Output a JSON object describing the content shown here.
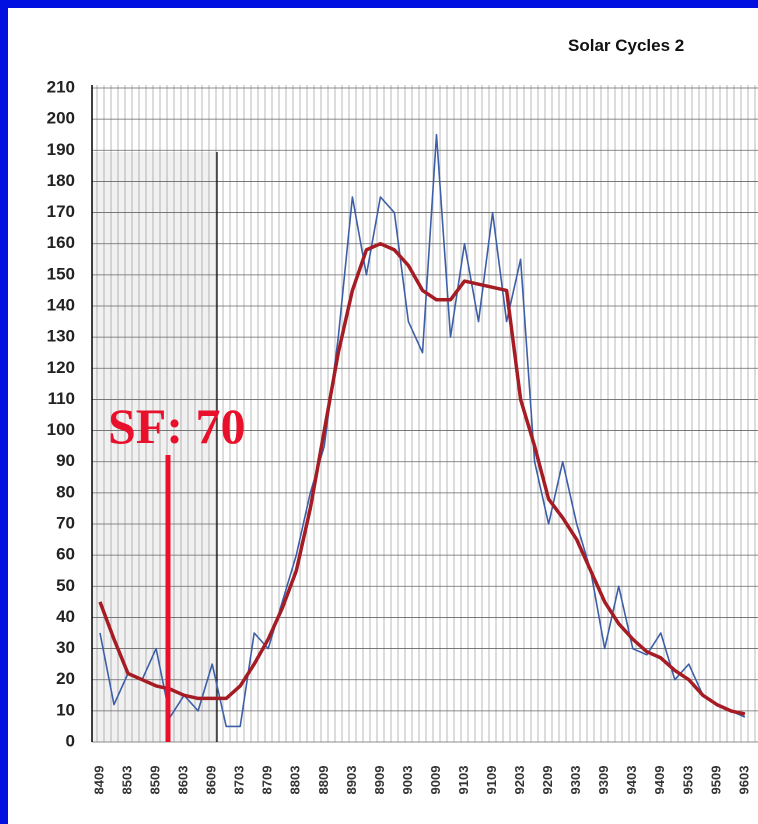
{
  "chart_data": {
    "type": "line",
    "title": "Solar Cycles 2",
    "annotation": "SF: 70",
    "categories": [
      "8409",
      null,
      "8503",
      null,
      "8509",
      null,
      "8603",
      null,
      "8609",
      null,
      "8703",
      null,
      "8709",
      null,
      "8803",
      null,
      "8809",
      null,
      "8903",
      null,
      "8909",
      null,
      "9003",
      null,
      "9009",
      null,
      "9103",
      null,
      "9109",
      null,
      "9203",
      null,
      "9209",
      null,
      "9303",
      null,
      "9309",
      null,
      "9403",
      null,
      "9409",
      null,
      "9503",
      null,
      "9509",
      null,
      "9603"
    ],
    "series": [
      {
        "color": "#3d5fa8",
        "values": [
          35,
          12,
          22,
          20,
          30,
          8,
          15,
          10,
          25,
          5,
          5,
          35,
          30,
          45,
          60,
          80,
          95,
          130,
          175,
          150,
          175,
          170,
          135,
          125,
          195,
          130,
          160,
          135,
          170,
          135,
          155,
          90,
          70,
          90,
          70,
          55,
          30,
          50,
          30,
          28,
          35,
          20,
          25,
          15,
          12,
          10,
          8
        ]
      },
      {
        "color": "#a51c24",
        "values": [
          45,
          33,
          22,
          20,
          18,
          17,
          15,
          14,
          14,
          14,
          18,
          25,
          33,
          43,
          55,
          75,
          100,
          125,
          145,
          158,
          160,
          158,
          153,
          145,
          142,
          142,
          148,
          147,
          146,
          145,
          110,
          95,
          78,
          72,
          65,
          55,
          45,
          38,
          33,
          29,
          27,
          23,
          20,
          15,
          12,
          10,
          9
        ]
      }
    ],
    "ylim": [
      0,
      210
    ],
    "yticks": [
      0,
      10,
      20,
      30,
      40,
      50,
      60,
      70,
      80,
      90,
      100,
      110,
      120,
      130,
      140,
      150,
      160,
      170,
      180,
      190,
      200,
      210
    ],
    "grid": true
  }
}
